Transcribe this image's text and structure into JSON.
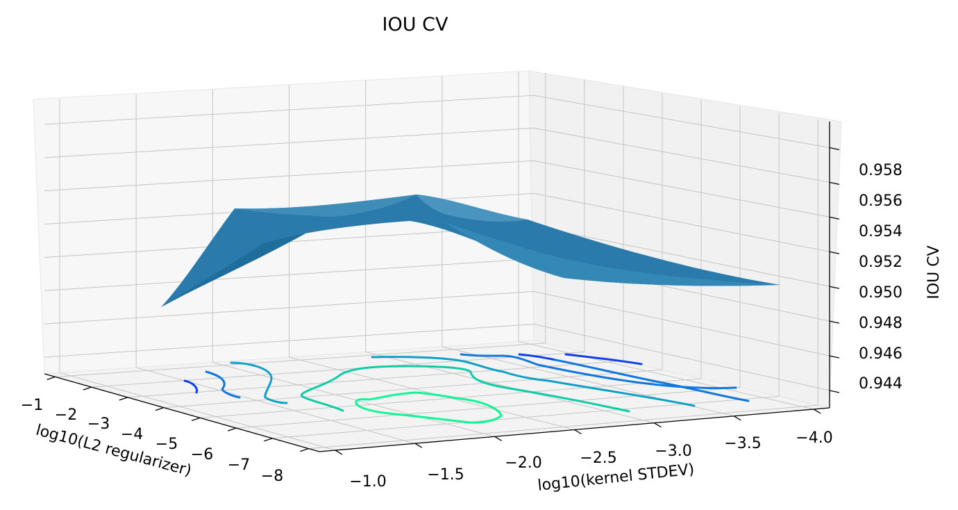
{
  "chart_data": {
    "type": "surface3d",
    "title": "IOU CV",
    "xlabel": "log10(kernel STDEV)",
    "ylabel": "log10(L2 regularizer)",
    "zlabel": "IOU CV",
    "x_ticks": [
      "−1.0",
      "−1.5",
      "−2.0",
      "−2.5",
      "−3.0",
      "−3.5",
      "−4.0"
    ],
    "y_ticks": [
      "−1",
      "−2",
      "−3",
      "−4",
      "−5",
      "−6",
      "−7",
      "−8"
    ],
    "z_ticks": [
      "0.944",
      "0.946",
      "0.948",
      "0.950",
      "0.952",
      "0.954",
      "0.956",
      "0.958"
    ],
    "xlim": [
      -0.9,
      -4.1
    ],
    "ylim": [
      -0.7,
      -8.3
    ],
    "zlim": [
      0.943,
      0.9595
    ],
    "grid": true,
    "surface_color": "#2a7bab",
    "contour_colors": [
      "#1040ee",
      "#0f77dd",
      "#0fa0c8",
      "#0fcca8",
      "#10f596"
    ]
  }
}
